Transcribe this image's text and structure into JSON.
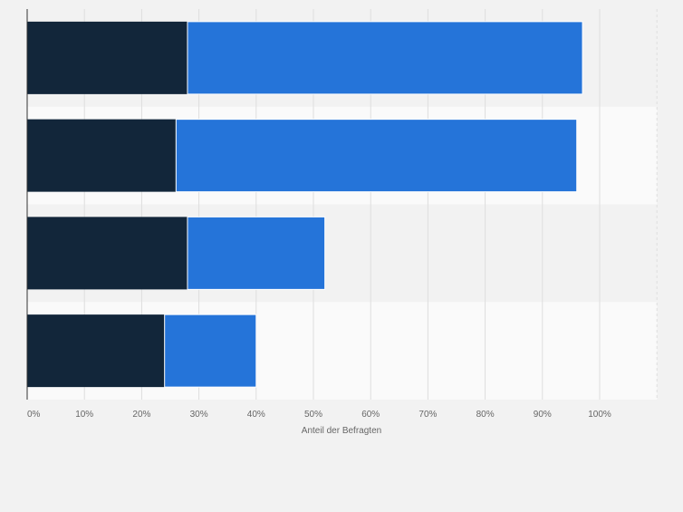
{
  "chart_data": {
    "type": "bar",
    "orientation": "horizontal",
    "stacked": true,
    "categories": [
      "",
      "",
      "",
      ""
    ],
    "series": [
      {
        "values": [
          28,
          26,
          28,
          24
        ],
        "color": "#12263a"
      },
      {
        "values": [
          69,
          70,
          24,
          16
        ],
        "color": "#2574d9"
      }
    ],
    "xlabel": "Anteil der Befragten",
    "x_ticks": [
      "0%",
      "10%",
      "20%",
      "30%",
      "40%",
      "50%",
      "60%",
      "70%",
      "80%",
      "90%",
      "100%"
    ],
    "xlim": [
      0,
      110
    ],
    "grid": true,
    "legend": "none"
  }
}
